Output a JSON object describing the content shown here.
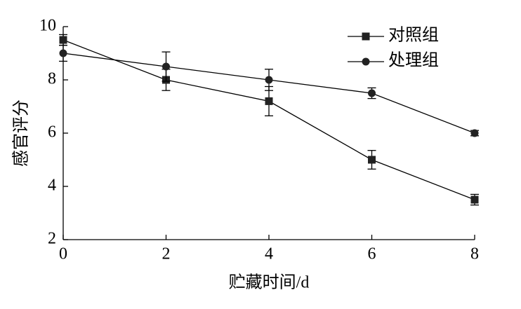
{
  "chart_data": {
    "type": "line",
    "x_label": "贮藏时间/d",
    "y_label": "感官评分",
    "x": [
      0,
      2,
      4,
      6,
      8
    ],
    "series": [
      {
        "name": "对照组",
        "marker": "square",
        "color": "#222222",
        "values": [
          9.5,
          8.0,
          7.2,
          5.0,
          3.5
        ],
        "errors": [
          0.2,
          0.4,
          0.55,
          0.35,
          0.2
        ]
      },
      {
        "name": "处理组",
        "marker": "circle",
        "color": "#222222",
        "values": [
          9.0,
          8.5,
          8.0,
          7.5,
          6.0
        ],
        "errors": [
          0.3,
          0.55,
          0.4,
          0.2,
          0.1
        ]
      }
    ],
    "xlim": [
      0,
      8
    ],
    "xticks": [
      0,
      2,
      4,
      6,
      8
    ],
    "ylim": [
      2,
      10
    ],
    "yticks": [
      2,
      4,
      6,
      8,
      10
    ],
    "legend": "upper-right"
  }
}
